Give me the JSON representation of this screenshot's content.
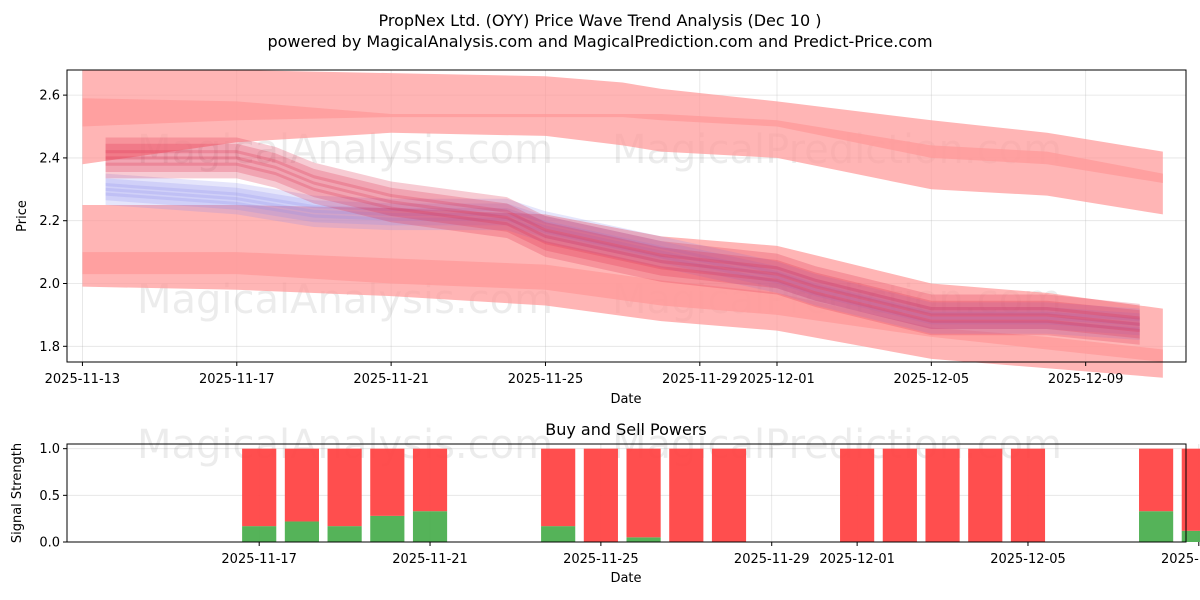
{
  "title_line1": "PropNex Ltd. (OYY) Price Wave Trend Analysis (Dec 10 )",
  "title_line2": "powered by MagicalAnalysis.com and MagicalPrediction.com and Predict-Price.com",
  "watermarks": [
    "MagicalAnalysis.com",
    "MagicalPrediction.com"
  ],
  "colors": {
    "band": "#ff9999",
    "red_strand": "#e03050",
    "blue_strand": "#8888ee",
    "buy": "#4caf50",
    "sell": "#ff4444"
  },
  "chart_data": [
    {
      "type": "area",
      "title": "",
      "xlabel": "Date",
      "ylabel": "Price",
      "ylim": [
        1.75,
        2.68
      ],
      "x_day_range": [
        -0.4,
        28.6
      ],
      "x_ticks": [
        {
          "day": 0,
          "label": "2025-11-13"
        },
        {
          "day": 4,
          "label": "2025-11-17"
        },
        {
          "day": 8,
          "label": "2025-11-21"
        },
        {
          "day": 12,
          "label": "2025-11-25"
        },
        {
          "day": 16,
          "label": "2025-11-29"
        },
        {
          "day": 18,
          "label": "2025-12-01"
        },
        {
          "day": 22,
          "label": "2025-12-05"
        },
        {
          "day": 26,
          "label": "2025-12-09"
        }
      ],
      "y_ticks": [
        1.8,
        2.0,
        2.2,
        2.4,
        2.6
      ],
      "grid": true,
      "series": [
        {
          "name": "upper-band",
          "x": [
            0,
            4,
            8,
            12,
            14,
            15,
            18,
            22,
            25,
            28
          ],
          "lower": [
            2.38,
            2.45,
            2.48,
            2.47,
            2.44,
            2.42,
            2.4,
            2.3,
            2.28,
            2.22
          ],
          "upper": [
            2.68,
            2.68,
            2.67,
            2.66,
            2.64,
            2.62,
            2.58,
            2.52,
            2.48,
            2.42
          ]
        },
        {
          "name": "top-band",
          "x": [
            0,
            4,
            8,
            12,
            14,
            15,
            18,
            22,
            25,
            28
          ],
          "lower": [
            2.5,
            2.52,
            2.53,
            2.53,
            2.53,
            2.52,
            2.5,
            2.4,
            2.38,
            2.32
          ],
          "upper": [
            2.59,
            2.58,
            2.54,
            2.54,
            2.54,
            2.54,
            2.52,
            2.44,
            2.42,
            2.35
          ]
        },
        {
          "name": "middle-band",
          "x": [
            0,
            4,
            8,
            12,
            15,
            18,
            22,
            25,
            28
          ],
          "lower": [
            2.03,
            2.03,
            2.0,
            1.98,
            1.93,
            1.9,
            1.83,
            1.79,
            1.75
          ],
          "upper": [
            2.25,
            2.25,
            2.24,
            2.22,
            2.15,
            2.12,
            2.0,
            1.97,
            1.92
          ]
        },
        {
          "name": "lower-band",
          "x": [
            0,
            4,
            8,
            12,
            15,
            18,
            22,
            25,
            28
          ],
          "lower": [
            1.99,
            1.98,
            1.96,
            1.93,
            1.88,
            1.85,
            1.76,
            1.73,
            1.7
          ],
          "upper": [
            2.1,
            2.1,
            2.08,
            2.06,
            2.01,
            1.97,
            1.86,
            1.83,
            1.79
          ]
        },
        {
          "name": "red-strands",
          "x": [
            0.6,
            4,
            5,
            6,
            8,
            11,
            12,
            15,
            18,
            19,
            22,
            25,
            27.4
          ],
          "values": [
            2.4,
            2.4,
            2.37,
            2.32,
            2.26,
            2.21,
            2.15,
            2.07,
            2.03,
            1.99,
            1.9,
            1.9,
            1.87
          ]
        },
        {
          "name": "blue-strands",
          "x": [
            0.6,
            4,
            5,
            6,
            8,
            11,
            12,
            15,
            18,
            19,
            22,
            25,
            27.4
          ],
          "values": [
            2.3,
            2.27,
            2.25,
            2.23,
            2.22,
            2.22,
            2.18,
            2.1,
            2.02,
            1.98,
            1.89,
            1.89,
            1.87
          ]
        }
      ]
    },
    {
      "type": "bar",
      "title": "Buy and Sell Powers",
      "xlabel": "Date",
      "ylabel": "Signal Strength",
      "ylim": [
        0,
        1.05
      ],
      "x_day_range": [
        -0.5,
        25.7
      ],
      "x_ticks": [
        {
          "day": 4,
          "label": "2025-11-17"
        },
        {
          "day": 8,
          "label": "2025-11-21"
        },
        {
          "day": 12,
          "label": "2025-11-25"
        },
        {
          "day": 16,
          "label": "2025-11-29"
        },
        {
          "day": 18,
          "label": "2025-12-01"
        },
        {
          "day": 22,
          "label": "2025-12-05"
        },
        {
          "day": 26,
          "label": "2025-12-09"
        }
      ],
      "y_ticks": [
        "0.0",
        "0.5",
        "1.0"
      ],
      "days": [
        4,
        5,
        6,
        7,
        8,
        11,
        12,
        13,
        14,
        15,
        18,
        19,
        20,
        21,
        22,
        25,
        26,
        27
      ],
      "series": [
        {
          "name": "buy",
          "values": [
            0.17,
            0.22,
            0.17,
            0.28,
            0.33,
            0.17,
            0.0,
            0.05,
            0.0,
            0.0,
            0.0,
            0.0,
            0.0,
            0.0,
            0.0,
            0.33,
            0.12,
            0.0
          ]
        },
        {
          "name": "sell",
          "values": [
            0.83,
            0.78,
            0.83,
            0.72,
            0.67,
            0.83,
            1.0,
            0.95,
            1.0,
            1.0,
            1.0,
            1.0,
            1.0,
            1.0,
            1.0,
            0.67,
            0.88,
            1.0
          ]
        }
      ]
    }
  ]
}
